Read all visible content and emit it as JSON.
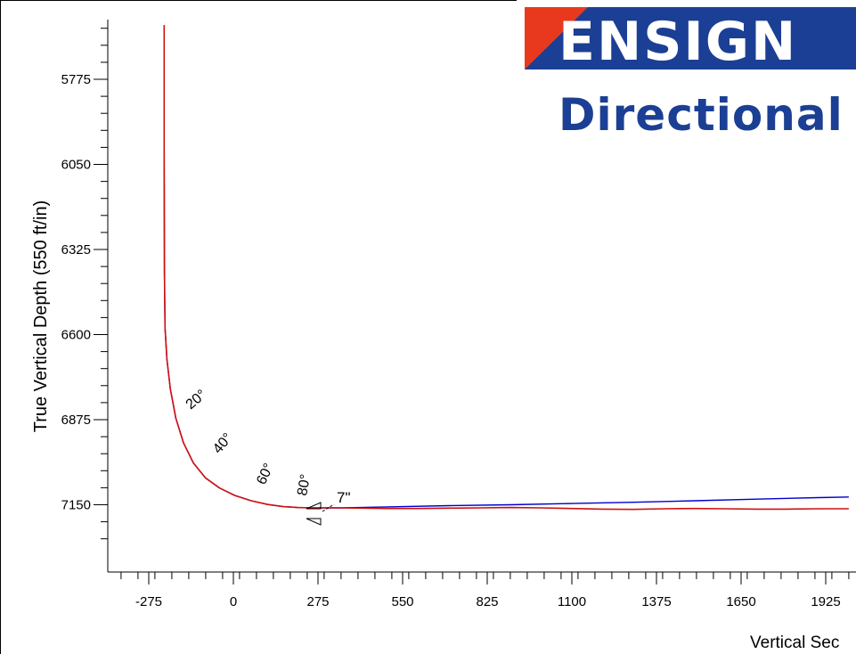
{
  "logo": {
    "company": "ENSIGN",
    "division": "Directional",
    "colors": {
      "blue": "#1b3f94",
      "red": "#e8391e"
    }
  },
  "chart_data": {
    "type": "line",
    "ylabel": "True Vertical Depth (550 ft/in)",
    "xlabel": "Vertical Sec",
    "x_ticks": [
      -275,
      0,
      275,
      550,
      825,
      1100,
      1375,
      1650,
      1925
    ],
    "y_ticks": [
      5775,
      6050,
      6325,
      6600,
      6875,
      7150
    ],
    "xlim": [
      -420,
      2000
    ],
    "ylim": [
      5600,
      7350
    ],
    "y_inverted": true,
    "grid": false,
    "series": [
      {
        "color": "#0000cc",
        "x": [
          -225,
          -225,
          -224,
          -222,
          -216,
          -205,
          -187,
          -162,
          -130,
          -91,
          -45,
          5,
          58,
          112,
          162,
          208,
          250,
          290,
          350,
          500,
          700,
          900,
          1100,
          1300,
          1500,
          1700,
          1900,
          2000
        ],
        "y": [
          5600,
          6000,
          6400,
          6580,
          6680,
          6775,
          6870,
          6950,
          7015,
          7063,
          7096,
          7120,
          7137,
          7149,
          7156,
          7159,
          7160,
          7160,
          7160,
          7157,
          7153,
          7150,
          7146,
          7142,
          7137,
          7132,
          7127,
          7125
        ]
      },
      {
        "color": "#d01010",
        "x": [
          -225,
          -225,
          -224,
          -222,
          -216,
          -205,
          -187,
          -162,
          -130,
          -91,
          -45,
          5,
          58,
          112,
          162,
          208,
          250,
          290,
          350,
          500,
          600,
          700,
          800,
          900,
          1000,
          1100,
          1200,
          1300,
          1400,
          1500,
          1600,
          1700,
          1800,
          1900,
          2000
        ],
        "y": [
          5600,
          6000,
          6400,
          6580,
          6680,
          6775,
          6870,
          6950,
          7015,
          7063,
          7096,
          7120,
          7137,
          7149,
          7156,
          7159,
          7160,
          7160,
          7160,
          7162,
          7162,
          7161,
          7160,
          7159,
          7160,
          7162,
          7164,
          7165,
          7163,
          7162,
          7163,
          7164,
          7164,
          7163,
          7163
        ]
      }
    ],
    "inclination_labels": [
      "20°",
      "40°",
      "60°",
      "80°"
    ],
    "annotations": [
      {
        "text": "7\"",
        "x": 275,
        "y": 7160
      }
    ]
  }
}
